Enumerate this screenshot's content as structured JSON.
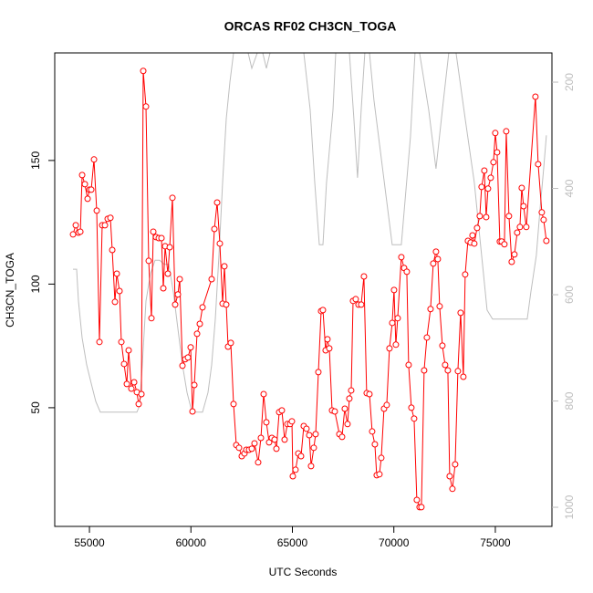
{
  "chart_data": {
    "type": "line",
    "title": "ORCAS RF02 CH3CN_TOGA",
    "x_label": "UTC Seconds",
    "y_label": "CH3CN_TOGA",
    "xlim": [
      53290,
      77790
    ],
    "ylim": [
      2,
      193.5
    ],
    "y2lim": [
      1036,
      145
    ],
    "xticks": [
      55000,
      60000,
      65000,
      70000,
      75000
    ],
    "yticks": [
      50,
      100,
      150
    ],
    "y2ticks": [
      200,
      400,
      600,
      800,
      1000
    ],
    "y2_tick_color": "#bebebe",
    "series": [
      {
        "color": "#ff0000",
        "markers": true,
        "x": [
          54191,
          54326,
          54461,
          54551,
          54640,
          54775,
          54910,
          55000,
          55090,
          55225,
          55360,
          55494,
          55629,
          55764,
          55899,
          56034,
          56124,
          56258,
          56348,
          56483,
          56573,
          56708,
          56843,
          56932,
          57067,
          57202,
          57337,
          57427,
          57562,
          57651,
          57786,
          57921,
          58056,
          58146,
          58281,
          58415,
          58550,
          58640,
          58730,
          58865,
          58955,
          59090,
          59224,
          59359,
          59449,
          59584,
          59719,
          59854,
          59988,
          60078,
          60168,
          60303,
          60438,
          60573,
          61022,
          61157,
          61292,
          61426,
          61561,
          61651,
          61741,
          61831,
          61966,
          62101,
          62235,
          62370,
          62505,
          62640,
          62730,
          62865,
          63000,
          63134,
          63314,
          63449,
          63584,
          63718,
          63853,
          63988,
          64123,
          64213,
          64348,
          64482,
          64617,
          64752,
          64887,
          64977,
          65022,
          65156,
          65291,
          65426,
          65561,
          65696,
          65831,
          65920,
          66055,
          66145,
          66280,
          66415,
          66505,
          66639,
          66729,
          66819,
          66954,
          67089,
          67314,
          67448,
          67583,
          67718,
          67808,
          67898,
          67988,
          68122,
          68257,
          68392,
          68527,
          68662,
          68797,
          68931,
          69066,
          69156,
          69291,
          69381,
          69516,
          69650,
          69785,
          69920,
          70010,
          70100,
          70190,
          70369,
          70504,
          70639,
          70729,
          70864,
          70999,
          71133,
          71268,
          71358,
          71493,
          71628,
          71808,
          71942,
          72077,
          72167,
          72257,
          72392,
          72527,
          72661,
          72751,
          72886,
          73021,
          73156,
          73291,
          73425,
          73515,
          73650,
          73785,
          73875,
          73965,
          74100,
          74234,
          74324,
          74459,
          74549,
          74639,
          74774,
          74908,
          74998,
          75088,
          75223,
          75313,
          75448,
          75538,
          75672,
          75807,
          75942,
          76077,
          76212,
          76302,
          76391,
          76526,
          76976,
          77110,
          77290,
          77380,
          77515
        ],
        "values": [
          120.1,
          123.8,
          120.8,
          121.2,
          144.1,
          140.4,
          134.5,
          138.2,
          138.2,
          150.4,
          129.7,
          76.6,
          123.8,
          123.8,
          126.4,
          126.8,
          113.8,
          92.8,
          104.2,
          97.2,
          76.6,
          67.7,
          59.6,
          73.2,
          57.7,
          60.3,
          56.3,
          51.5,
          55.5,
          186.2,
          171.8,
          109.4,
          86.2,
          121.2,
          119,
          118.6,
          118.6,
          98.3,
          115.3,
          104.2,
          114.9,
          134.9,
          91.7,
          95.8,
          102,
          67,
          69.6,
          70.3,
          74.4,
          48.5,
          59.2,
          79.9,
          83.9,
          90.6,
          102,
          122.3,
          133,
          116.4,
          92.1,
          107.2,
          91.7,
          74.7,
          76.2,
          51.5,
          34.9,
          33.8,
          30.4,
          31.5,
          33,
          33,
          33.4,
          35.6,
          27.9,
          37.8,
          55.5,
          44.1,
          36,
          37.8,
          37.1,
          33.4,
          48.2,
          48.9,
          37.1,
          43.4,
          43.4,
          44.5,
          22.3,
          24.9,
          31.5,
          30.4,
          42.6,
          41.5,
          38.9,
          26.4,
          33.8,
          39.3,
          64.4,
          89.1,
          89.5,
          73.2,
          77.7,
          74,
          48.9,
          48.5,
          39.3,
          38.2,
          49.6,
          43.4,
          53.7,
          57,
          93.2,
          93.9,
          91.7,
          91.7,
          103.1,
          55.9,
          55.5,
          40.4,
          35.2,
          22.7,
          23.1,
          29.7,
          49.6,
          51.1,
          74,
          84.3,
          97.6,
          75.5,
          86.2,
          110.9,
          106.5,
          105,
          67.3,
          50,
          45.6,
          12.7,
          9.8,
          9.8,
          65.1,
          78.4,
          89.9,
          108.3,
          113.1,
          110.1,
          91,
          75.1,
          67.3,
          65.1,
          22.3,
          17.2,
          27.1,
          64.8,
          88.4,
          62.5,
          103.9,
          117.5,
          116.8,
          119.7,
          116.4,
          122.7,
          127.5,
          139.3,
          145.9,
          127.1,
          138.6,
          143,
          149.3,
          161.1,
          153.3,
          117.2,
          117.2,
          116.1,
          161.8,
          127.5,
          109,
          112,
          120.8,
          123.1,
          138.9,
          131.5,
          123.1,
          175.8,
          148.5,
          129,
          126,
          117.5
        ]
      },
      {
        "color": "#bebebe",
        "axis": "y2",
        "x": [
          54191,
          54371,
          54461,
          54640,
          54865,
          55090,
          55315,
          55539,
          55989,
          57337,
          57472,
          57607,
          57786,
          58011,
          58236,
          58460,
          58685,
          58910,
          59134,
          59359,
          59584,
          59809,
          60033,
          60258,
          60573,
          60842,
          61022,
          61202,
          61381,
          61561,
          61741,
          61921,
          62101,
          62370,
          62640,
          62820,
          63000,
          63269,
          63539,
          63718,
          63898,
          64527,
          65201,
          65561,
          65876,
          66100,
          66325,
          66505,
          66684,
          66999,
          67134,
          67448,
          67808,
          68032,
          68212,
          68392,
          68572,
          68662,
          68797,
          69021,
          69920,
          70369,
          70819,
          71043,
          71178,
          71268,
          71717,
          72077,
          72392,
          72706,
          72886,
          73066,
          73515,
          73965,
          74234,
          74414,
          74593,
          74863,
          76571,
          76751,
          77020,
          77200,
          77380,
          77515
        ],
        "values": [
          552,
          552,
          612,
          681,
          732,
          767,
          801,
          821,
          821,
          821,
          809,
          732,
          612,
          560,
          535,
          535,
          543,
          543,
          595,
          664,
          732,
          784,
          818,
          821,
          821,
          784,
          732,
          646,
          526,
          389,
          269,
          200,
          145,
          120,
          120,
          145,
          174,
          145,
          145,
          174,
          145,
          120,
          120,
          145,
          252,
          389,
          506,
          506,
          389,
          252,
          145,
          120,
          145,
          269,
          380,
          252,
          145,
          130,
          145,
          234,
          506,
          506,
          303,
          145,
          130,
          145,
          252,
          363,
          252,
          145,
          130,
          145,
          269,
          389,
          492,
          560,
          629,
          646,
          646,
          595,
          526,
          440,
          363,
          300
        ]
      }
    ]
  }
}
